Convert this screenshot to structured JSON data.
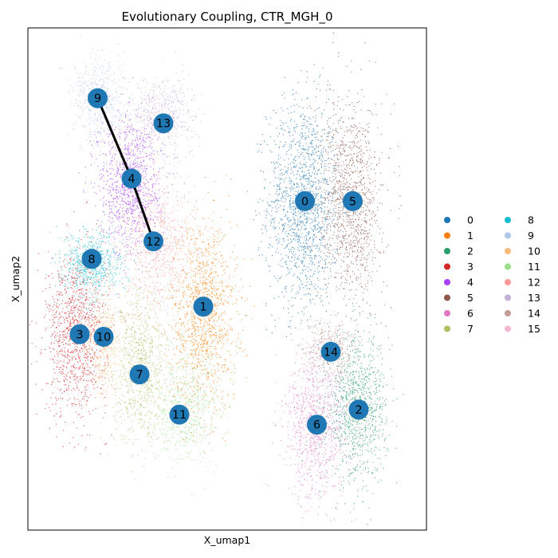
{
  "chart_data": {
    "type": "scatter",
    "title": "Evolutionary Coupling, CTR_MGH_0",
    "xlabel": "X_umap1",
    "ylabel": "X_umap2",
    "xlim": [
      0,
      10
    ],
    "ylim": [
      0,
      10
    ],
    "ticks": "none",
    "grid": false,
    "legend": "right, two columns",
    "node_color": "#1f77b4",
    "edge_color": "#000000",
    "clusters": [
      {
        "name": "0",
        "color": "#1f77b4",
        "x": 6.9,
        "y": 6.5,
        "sx": 0.45,
        "sy": 1.05,
        "n": 1500
      },
      {
        "name": "1",
        "color": "#ff7f0e",
        "x": 4.4,
        "y": 4.3,
        "sx": 0.42,
        "sy": 0.95,
        "n": 1200
      },
      {
        "name": "2",
        "color": "#279e68",
        "x": 8.25,
        "y": 2.45,
        "sx": 0.38,
        "sy": 0.72,
        "n": 1000
      },
      {
        "name": "3",
        "color": "#d62728",
        "x": 1.2,
        "y": 3.9,
        "sx": 0.38,
        "sy": 0.8,
        "n": 1100
      },
      {
        "name": "4",
        "color": "#aa40fc",
        "x": 2.55,
        "y": 6.9,
        "sx": 0.4,
        "sy": 0.72,
        "n": 1100
      },
      {
        "name": "5",
        "color": "#8c564b",
        "x": 8.1,
        "y": 6.55,
        "sx": 0.38,
        "sy": 1.0,
        "n": 1200
      },
      {
        "name": "6",
        "color": "#e377c2",
        "x": 7.25,
        "y": 2.1,
        "sx": 0.4,
        "sy": 0.75,
        "n": 900
      },
      {
        "name": "7",
        "color": "#b5bd61",
        "x": 2.8,
        "y": 3.3,
        "sx": 0.33,
        "sy": 0.75,
        "n": 800
      },
      {
        "name": "8",
        "color": "#17becf",
        "x": 1.6,
        "y": 5.3,
        "sx": 0.37,
        "sy": 0.32,
        "n": 600
      },
      {
        "name": "9",
        "color": "#aec7e8",
        "x": 1.8,
        "y": 8.6,
        "sx": 0.32,
        "sy": 0.42,
        "n": 500
      },
      {
        "name": "10",
        "color": "#ffbb78",
        "x": 1.9,
        "y": 3.7,
        "sx": 0.22,
        "sy": 0.55,
        "n": 400
      },
      {
        "name": "11",
        "color": "#98df8a",
        "x": 3.9,
        "y": 2.4,
        "sx": 0.45,
        "sy": 0.5,
        "n": 600
      },
      {
        "name": "12",
        "color": "#ff9896",
        "x": 3.3,
        "y": 5.7,
        "sx": 0.4,
        "sy": 0.65,
        "n": 600
      },
      {
        "name": "13",
        "color": "#c5b0d5",
        "x": 3.4,
        "y": 8.3,
        "sx": 0.42,
        "sy": 0.38,
        "n": 500
      },
      {
        "name": "14",
        "color": "#c49c94",
        "x": 7.5,
        "y": 3.6,
        "sx": 0.35,
        "sy": 0.3,
        "n": 350
      },
      {
        "name": "15",
        "color": "#f7b6d2",
        "x": 6.6,
        "y": 2.4,
        "sx": 0.08,
        "sy": 0.08,
        "n": 10
      }
    ],
    "nodes": [
      {
        "label": "0",
        "x": 6.95,
        "y": 6.55
      },
      {
        "label": "5",
        "x": 8.15,
        "y": 6.55
      },
      {
        "label": "9",
        "x": 1.75,
        "y": 8.6
      },
      {
        "label": "13",
        "x": 3.4,
        "y": 8.1
      },
      {
        "label": "4",
        "x": 2.6,
        "y": 7.0
      },
      {
        "label": "12",
        "x": 3.15,
        "y": 5.75
      },
      {
        "label": "8",
        "x": 1.6,
        "y": 5.4
      },
      {
        "label": "1",
        "x": 4.4,
        "y": 4.45
      },
      {
        "label": "3",
        "x": 1.3,
        "y": 3.9
      },
      {
        "label": "10",
        "x": 1.9,
        "y": 3.85
      },
      {
        "label": "7",
        "x": 2.8,
        "y": 3.1
      },
      {
        "label": "11",
        "x": 3.8,
        "y": 2.3
      },
      {
        "label": "14",
        "x": 7.6,
        "y": 3.55
      },
      {
        "label": "2",
        "x": 8.3,
        "y": 2.4
      },
      {
        "label": "6",
        "x": 7.25,
        "y": 2.1
      }
    ],
    "edges": [
      {
        "from": "9",
        "to": "4"
      },
      {
        "from": "4",
        "to": "12"
      }
    ]
  }
}
